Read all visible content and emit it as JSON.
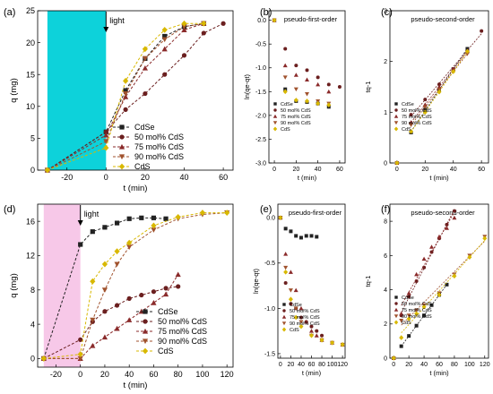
{
  "colors": {
    "cdse": "#222222",
    "s50": "#6b1f1f",
    "s75": "#8a2a2a",
    "s90": "#a0522d",
    "cds": "#d8b800",
    "light_bg_top": "#00d0d8",
    "light_bg_bottom": "#f6c2e6"
  },
  "chart_data": [
    {
      "panel": "(a)",
      "type": "line",
      "ylabel": "q (mg)",
      "xlabel": "t (min)",
      "xlim": [
        -35,
        65
      ],
      "ylim": [
        0,
        25
      ],
      "xticks": [
        -20,
        0,
        20,
        40,
        60
      ],
      "yticks": [
        0,
        5,
        10,
        15,
        20,
        25
      ],
      "annotation": "light",
      "legend_labels": [
        "CdSe",
        "50 mol% CdS",
        "75 mol% CdS",
        "90 mol% CdS",
        "CdS"
      ],
      "series": [
        {
          "name": "CdSe",
          "key": "cdse",
          "marker": "square",
          "dashed": true,
          "x": [
            -30,
            0,
            10,
            20,
            30,
            40,
            50
          ],
          "y": [
            0,
            6.0,
            12.5,
            17.5,
            21.0,
            22.5,
            23.0
          ]
        },
        {
          "name": "50 mol% CdS",
          "key": "s50",
          "marker": "circle",
          "dashed": true,
          "x": [
            -30,
            0,
            10,
            20,
            30,
            40,
            50,
            60
          ],
          "y": [
            0,
            6.0,
            9.5,
            12.0,
            15.0,
            18.0,
            21.5,
            23.0
          ]
        },
        {
          "name": "75 mol% CdS",
          "key": "s75",
          "marker": "triangle",
          "dashed": true,
          "x": [
            -30,
            0,
            10,
            20,
            30,
            40,
            50
          ],
          "y": [
            0,
            5.5,
            11.5,
            16.0,
            19.0,
            22.0,
            23.0
          ]
        },
        {
          "name": "90 mol% CdS",
          "key": "s90",
          "marker": "triangle-down",
          "dashed": true,
          "x": [
            -30,
            0,
            10,
            20,
            30,
            40,
            50
          ],
          "y": [
            0,
            4.5,
            12.0,
            17.5,
            20.5,
            22.5,
            23.0
          ]
        },
        {
          "name": "CdS",
          "key": "cds",
          "marker": "diamond",
          "dashed": true,
          "x": [
            -30,
            0,
            10,
            20,
            30,
            40,
            50
          ],
          "y": [
            0,
            3.5,
            14.0,
            19.0,
            22.0,
            23.0,
            23.0
          ]
        }
      ]
    },
    {
      "panel": "(b)",
      "type": "scatter",
      "title": "pseudo-first-order",
      "ylabel": "ln(qe-qt)",
      "xlabel": "t (min)",
      "xlim": [
        -5,
        65
      ],
      "ylim": [
        -3.0,
        0.2
      ],
      "xticks": [
        0,
        20,
        40,
        60
      ],
      "yticks": [
        0.0,
        -0.5,
        -1.0,
        -1.5,
        -2.0,
        -2.5,
        -3.0
      ],
      "legend_labels": [
        "CdSe",
        "50 mol% CdS",
        "75 mol% CdS",
        "90 mol% CdS",
        "CdS"
      ],
      "series": [
        {
          "name": "CdSe",
          "key": "cdse",
          "marker": "square",
          "x": [
            0,
            10,
            20,
            30,
            40,
            50
          ],
          "y": [
            0,
            -1.45,
            -1.7,
            -1.72,
            -1.75,
            -1.82
          ]
        },
        {
          "name": "50 mol% CdS",
          "key": "s50",
          "marker": "circle",
          "x": [
            0,
            10,
            20,
            30,
            40,
            50,
            60
          ],
          "y": [
            0,
            -0.6,
            -0.95,
            -1.05,
            -1.2,
            -1.35,
            -1.4
          ]
        },
        {
          "name": "75 mol% CdS",
          "key": "s75",
          "marker": "triangle",
          "x": [
            0,
            10,
            20,
            30,
            40,
            50
          ],
          "y": [
            0,
            -0.95,
            -1.15,
            -1.25,
            -1.35,
            -1.5
          ]
        },
        {
          "name": "90 mol% CdS",
          "key": "s90",
          "marker": "triangle-down",
          "x": [
            0,
            10,
            20,
            30,
            40,
            50
          ],
          "y": [
            0,
            -1.2,
            -1.45,
            -1.55,
            -1.7,
            -1.75
          ]
        },
        {
          "name": "CdS",
          "key": "cds",
          "marker": "diamond",
          "x": [
            0,
            10,
            20,
            30,
            40,
            50
          ],
          "y": [
            0,
            -1.5,
            -1.68,
            -1.7,
            -1.75,
            -1.78
          ]
        }
      ]
    },
    {
      "panel": "(c)",
      "type": "scatter",
      "title": "pseudo-second-order",
      "ylabel": "tq-1",
      "xlabel": "t (min)",
      "xlim": [
        -5,
        65
      ],
      "ylim": [
        0,
        3.0
      ],
      "xticks": [
        0,
        20,
        40,
        60
      ],
      "yticks": [
        0,
        1,
        2,
        3
      ],
      "legend_labels": [
        "CdSe",
        "50 mol% CdS",
        "75 mol% CdS",
        "90 mol% CdS",
        "CdS"
      ],
      "series": [
        {
          "name": "CdSe",
          "key": "cdse",
          "marker": "square",
          "fit": true,
          "x": [
            0,
            10,
            20,
            30,
            40,
            50
          ],
          "y": [
            0,
            0.6,
            1.05,
            1.45,
            1.85,
            2.25
          ]
        },
        {
          "name": "50 mol% CdS",
          "key": "s50",
          "marker": "circle",
          "fit": true,
          "x": [
            0,
            10,
            20,
            30,
            40,
            50,
            60
          ],
          "y": [
            0,
            0.95,
            1.25,
            1.55,
            1.85,
            2.2,
            2.6
          ]
        },
        {
          "name": "75 mol% CdS",
          "key": "s75",
          "marker": "triangle",
          "fit": true,
          "x": [
            0,
            10,
            20,
            30,
            40,
            50
          ],
          "y": [
            0,
            0.8,
            1.15,
            1.5,
            1.85,
            2.2
          ]
        },
        {
          "name": "90 mol% CdS",
          "key": "s90",
          "marker": "triangle-down",
          "fit": true,
          "x": [
            0,
            10,
            20,
            30,
            40,
            50
          ],
          "y": [
            0,
            0.75,
            1.1,
            1.45,
            1.8,
            2.15
          ]
        },
        {
          "name": "CdS",
          "key": "cds",
          "marker": "diamond",
          "fit": true,
          "x": [
            0,
            10,
            20,
            30,
            40,
            50
          ],
          "y": [
            0,
            0.62,
            1.0,
            1.4,
            1.8,
            2.2
          ]
        }
      ]
    },
    {
      "panel": "(d)",
      "type": "line",
      "ylabel": "q (mg)",
      "xlabel": "t (min)",
      "xlim": [
        -35,
        125
      ],
      "ylim": [
        -1,
        18
      ],
      "xticks": [
        -20,
        0,
        20,
        40,
        60,
        80,
        100,
        120
      ],
      "yticks": [
        0,
        4,
        8,
        12,
        16
      ],
      "annotation": "light",
      "legend_labels": [
        "CdSe",
        "50 mol% CdS",
        "75 mol% CdS",
        "90 mol% CdS",
        "CdS"
      ],
      "series": [
        {
          "name": "CdSe",
          "key": "cdse",
          "marker": "square",
          "dashed": true,
          "x": [
            -30,
            0,
            10,
            20,
            30,
            40,
            50,
            60,
            70
          ],
          "y": [
            0,
            13.3,
            14.8,
            15.3,
            15.8,
            16.3,
            16.4,
            16.4,
            16.3
          ]
        },
        {
          "name": "50 mol% CdS",
          "key": "s50",
          "marker": "circle",
          "dashed": true,
          "x": [
            -30,
            0,
            10,
            20,
            30,
            40,
            50,
            60,
            70,
            80
          ],
          "y": [
            0,
            2.2,
            4.3,
            5.5,
            6.2,
            7.0,
            7.4,
            7.8,
            8.2,
            8.4
          ]
        },
        {
          "name": "75 mol% CdS",
          "key": "s75",
          "marker": "triangle",
          "dashed": true,
          "x": [
            -30,
            0,
            10,
            20,
            30,
            40,
            50,
            60,
            70,
            80
          ],
          "y": [
            0,
            0.0,
            1.5,
            2.5,
            3.5,
            4.5,
            5.5,
            6.5,
            7.5,
            9.8
          ]
        },
        {
          "name": "90 mol% CdS",
          "key": "s90",
          "marker": "triangle-down",
          "dashed": true,
          "x": [
            -30,
            0,
            10,
            20,
            30,
            40,
            60,
            80,
            100,
            120
          ],
          "y": [
            0,
            0.0,
            4.5,
            8.0,
            11.0,
            13.0,
            15.0,
            16.3,
            16.8,
            17.0
          ]
        },
        {
          "name": "CdS",
          "key": "cds",
          "marker": "diamond",
          "dashed": true,
          "x": [
            -30,
            0,
            10,
            20,
            30,
            40,
            60,
            80,
            100,
            120
          ],
          "y": [
            0,
            0.5,
            9.0,
            11.0,
            12.5,
            13.5,
            15.5,
            16.5,
            17.0,
            17.0
          ]
        }
      ]
    },
    {
      "panel": "(e)",
      "type": "scatter",
      "title": "pseudo-first-order",
      "ylabel": "ln(qe-qt)",
      "xlabel": "t (min)",
      "xlim": [
        -5,
        125
      ],
      "ylim": [
        -1.55,
        0.15
      ],
      "xticks": [
        0,
        20,
        40,
        60,
        80,
        100,
        120
      ],
      "yticks": [
        0.0,
        -0.5,
        -1.0,
        -1.5
      ],
      "legend_labels": [
        "CdSe",
        "50 mol% CdS",
        "75 mol% CdS",
        "90 mol% CdS",
        "CdS"
      ],
      "series": [
        {
          "name": "CdSe",
          "key": "cdse",
          "marker": "square",
          "x": [
            0,
            10,
            20,
            30,
            40,
            50,
            60,
            70
          ],
          "y": [
            0,
            -0.12,
            -0.15,
            -0.2,
            -0.22,
            -0.2,
            -0.2,
            -0.21
          ]
        },
        {
          "name": "50 mol% CdS",
          "key": "s50",
          "marker": "circle",
          "x": [
            0,
            10,
            20,
            30,
            40,
            50,
            60,
            70,
            80
          ],
          "y": [
            0,
            -0.72,
            -0.95,
            -1.0,
            -1.1,
            -1.15,
            -1.2,
            -1.25,
            -1.3
          ]
        },
        {
          "name": "75 mol% CdS",
          "key": "s75",
          "marker": "triangle",
          "x": [
            0,
            10,
            20,
            30,
            40,
            50,
            60,
            70,
            80,
            100,
            120
          ],
          "y": [
            0,
            -0.4,
            -0.6,
            -0.8,
            -1.0,
            -1.15,
            -1.25,
            -1.3,
            -1.35,
            -1.38,
            -1.4
          ]
        },
        {
          "name": "90 mol% CdS",
          "key": "s90",
          "marker": "triangle-down",
          "x": [
            0,
            10,
            20,
            30,
            40,
            60,
            80,
            100,
            120
          ],
          "y": [
            0,
            -0.55,
            -0.8,
            -1.0,
            -1.15,
            -1.3,
            -1.35,
            -1.38,
            -1.4
          ]
        },
        {
          "name": "CdS",
          "key": "cds",
          "marker": "diamond",
          "x": [
            0,
            10,
            20,
            30,
            40,
            60,
            80,
            100,
            120
          ],
          "y": [
            0,
            -0.6,
            -0.9,
            -1.1,
            -1.2,
            -1.3,
            -1.35,
            -1.38,
            -1.4
          ]
        }
      ]
    },
    {
      "panel": "(f)",
      "type": "scatter",
      "title": "pseudo-second-order",
      "ylabel": "tq-1",
      "xlabel": "t (min)",
      "xlim": [
        -5,
        125
      ],
      "ylim": [
        0,
        9
      ],
      "xticks": [
        0,
        20,
        40,
        60,
        80,
        100,
        120
      ],
      "yticks": [
        0,
        2,
        4,
        6,
        8
      ],
      "legend_labels": [
        "CdSe",
        "50 mol% CdS",
        "75 mol% CdS",
        "90 mol% CdS",
        "CdS"
      ],
      "series": [
        {
          "name": "CdSe",
          "key": "cdse",
          "marker": "square",
          "fit": true,
          "x": [
            0,
            10,
            20,
            30,
            40,
            50,
            60,
            70
          ],
          "y": [
            0,
            0.7,
            1.3,
            1.9,
            2.5,
            3.1,
            3.7,
            4.3
          ]
        },
        {
          "name": "50 mol% CdS",
          "key": "s50",
          "marker": "circle",
          "fit": true,
          "x": [
            0,
            10,
            20,
            30,
            40,
            50,
            60,
            70,
            80
          ],
          "y": [
            0,
            2.5,
            3.6,
            4.5,
            5.3,
            6.2,
            7.0,
            7.8,
            8.6
          ]
        },
        {
          "name": "75 mol% CdS",
          "key": "s75",
          "marker": "triangle",
          "fit": true,
          "x": [
            0,
            10,
            20,
            30,
            40,
            50,
            60,
            70,
            80
          ],
          "y": [
            0,
            2.6,
            3.8,
            4.9,
            5.8,
            6.5,
            7.1,
            7.6,
            8.2
          ]
        },
        {
          "name": "90 mol% CdS",
          "key": "s90",
          "marker": "triangle-down",
          "fit": true,
          "x": [
            0,
            10,
            20,
            30,
            40,
            60,
            80,
            100,
            120
          ],
          "y": [
            0,
            2.2,
            2.5,
            2.8,
            3.1,
            3.8,
            4.9,
            6.0,
            7.1
          ]
        },
        {
          "name": "CdS",
          "key": "cds",
          "marker": "diamond",
          "fit": true,
          "x": [
            0,
            10,
            20,
            30,
            40,
            60,
            80,
            100,
            120
          ],
          "y": [
            0,
            1.2,
            2.3,
            2.6,
            3.0,
            3.7,
            4.8,
            5.9,
            7.0
          ]
        }
      ]
    }
  ]
}
